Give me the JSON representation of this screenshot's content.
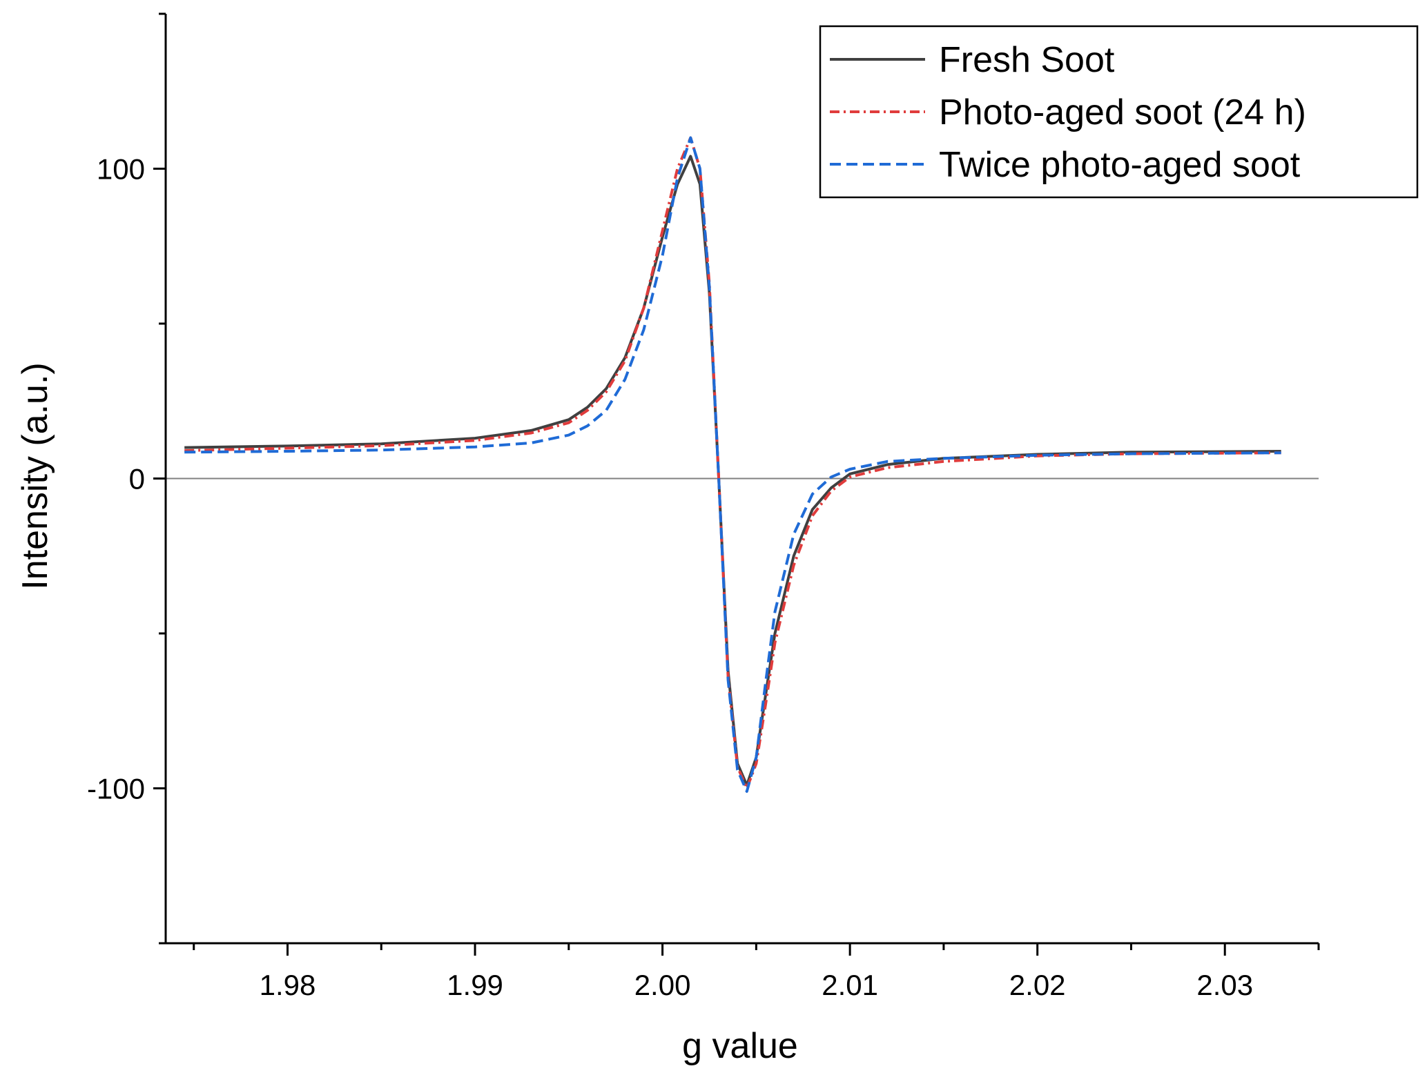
{
  "chart_data": {
    "type": "line",
    "title": "",
    "xlabel": "g value",
    "ylabel": "Intensity (a.u.)",
    "xlim": [
      1.9735,
      2.035
    ],
    "ylim": [
      -150,
      150
    ],
    "x_ticks": [
      1.98,
      1.99,
      2.0,
      2.01,
      2.02,
      2.03
    ],
    "x_tick_labels": [
      "1.98",
      "1.99",
      "2.00",
      "2.01",
      "2.02",
      "2.03"
    ],
    "x_minor_ticks": [
      1.975,
      1.985,
      1.995,
      2.005,
      2.015,
      2.025,
      2.035
    ],
    "y_ticks": [
      -100,
      0,
      100
    ],
    "y_tick_labels": [
      "-100",
      "0",
      "100"
    ],
    "y_minor_ticks": [
      -150,
      -50,
      50,
      150
    ],
    "zero_line": true,
    "grid": false,
    "legend_position": "top-right",
    "series": [
      {
        "name": "Fresh Soot",
        "color": "#404040",
        "dash": "solid",
        "points": [
          [
            1.9745,
            10
          ],
          [
            1.98,
            10.5
          ],
          [
            1.985,
            11.2
          ],
          [
            1.99,
            13
          ],
          [
            1.993,
            15.5
          ],
          [
            1.995,
            19
          ],
          [
            1.996,
            23
          ],
          [
            1.997,
            29
          ],
          [
            1.998,
            39
          ],
          [
            1.999,
            55
          ],
          [
            2.0,
            78
          ],
          [
            2.0008,
            95
          ],
          [
            2.0015,
            104
          ],
          [
            2.002,
            95
          ],
          [
            2.0025,
            60
          ],
          [
            2.003,
            0
          ],
          [
            2.0035,
            -62
          ],
          [
            2.004,
            -92
          ],
          [
            2.0045,
            -99
          ],
          [
            2.005,
            -90
          ],
          [
            2.0055,
            -70
          ],
          [
            2.006,
            -50
          ],
          [
            2.007,
            -25
          ],
          [
            2.008,
            -10
          ],
          [
            2.009,
            -3
          ],
          [
            2.01,
            1.5
          ],
          [
            2.012,
            4.5
          ],
          [
            2.015,
            6.5
          ],
          [
            2.02,
            7.8
          ],
          [
            2.025,
            8.5
          ],
          [
            2.033,
            8.8
          ]
        ]
      },
      {
        "name": "Photo-aged soot (24 h)",
        "color": "#e03c3c",
        "dash": "dashdot",
        "points": [
          [
            1.9745,
            9
          ],
          [
            1.98,
            9.8
          ],
          [
            1.985,
            10.6
          ],
          [
            1.99,
            12.3
          ],
          [
            1.993,
            14.7
          ],
          [
            1.995,
            18
          ],
          [
            1.996,
            22
          ],
          [
            1.997,
            28
          ],
          [
            1.998,
            38
          ],
          [
            1.999,
            55
          ],
          [
            2.0,
            80
          ],
          [
            2.0008,
            100
          ],
          [
            2.0015,
            110
          ],
          [
            2.002,
            100
          ],
          [
            2.0025,
            63
          ],
          [
            2.003,
            0
          ],
          [
            2.0035,
            -64
          ],
          [
            2.004,
            -93
          ],
          [
            2.0045,
            -100
          ],
          [
            2.005,
            -92
          ],
          [
            2.0055,
            -73
          ],
          [
            2.006,
            -53
          ],
          [
            2.007,
            -28
          ],
          [
            2.008,
            -12
          ],
          [
            2.009,
            -4
          ],
          [
            2.01,
            0.5
          ],
          [
            2.012,
            3.5
          ],
          [
            2.015,
            5.5
          ],
          [
            2.02,
            7.3
          ],
          [
            2.025,
            8
          ],
          [
            2.033,
            8.3
          ]
        ]
      },
      {
        "name": "Twice photo-aged soot",
        "color": "#1f6bd6",
        "dash": "dashed",
        "points": [
          [
            1.9745,
            8.5
          ],
          [
            1.98,
            8.8
          ],
          [
            1.985,
            9.2
          ],
          [
            1.99,
            10.2
          ],
          [
            1.993,
            11.5
          ],
          [
            1.995,
            14
          ],
          [
            1.996,
            17
          ],
          [
            1.997,
            22
          ],
          [
            1.998,
            32
          ],
          [
            1.999,
            48
          ],
          [
            2.0,
            72
          ],
          [
            2.0008,
            97
          ],
          [
            2.0015,
            110
          ],
          [
            2.002,
            100
          ],
          [
            2.0025,
            62
          ],
          [
            2.003,
            0
          ],
          [
            2.0035,
            -65
          ],
          [
            2.004,
            -94
          ],
          [
            2.0045,
            -101
          ],
          [
            2.005,
            -90
          ],
          [
            2.0055,
            -66
          ],
          [
            2.006,
            -43
          ],
          [
            2.007,
            -18
          ],
          [
            2.008,
            -5
          ],
          [
            2.009,
            0.5
          ],
          [
            2.01,
            3
          ],
          [
            2.012,
            5.5
          ],
          [
            2.015,
            6.5
          ],
          [
            2.02,
            7.5
          ],
          [
            2.025,
            8
          ],
          [
            2.033,
            8.3
          ]
        ]
      }
    ]
  }
}
